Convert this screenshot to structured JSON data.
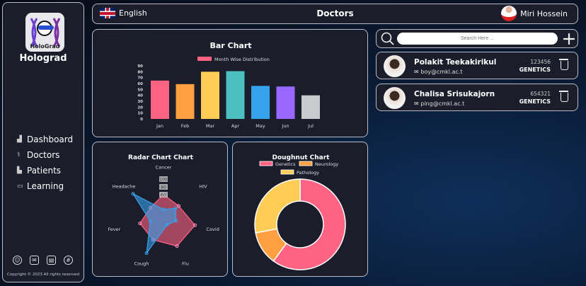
{
  "sidebar": {
    "brand": "Holograd",
    "logo_text": "HoloGrad",
    "items": [
      {
        "label": "Dashboard",
        "icon": "chart-icon"
      },
      {
        "label": "Doctors",
        "icon": "stethoscope-icon"
      },
      {
        "label": "Patients",
        "icon": "patients-icon"
      },
      {
        "label": "Learning",
        "icon": "book-icon"
      }
    ],
    "footer_icons": [
      "support-icon",
      "mail-icon",
      "document-icon",
      "globe-icon"
    ],
    "copyright": "Copyright © 2023 All rights reserved"
  },
  "header": {
    "language": "English",
    "title": "Doctors",
    "user": "Miri Hossein"
  },
  "search": {
    "placeholder": "Search Here ..."
  },
  "doctors": [
    {
      "name": "Polakit Teekakirikul",
      "email": "boy@cmkl.ac.t",
      "id": "123456",
      "department": "GENETICS"
    },
    {
      "name": "Chalisa Srisukajorn",
      "email": "ping@cmkl.ac.t",
      "id": "654321",
      "department": "GENETICS"
    }
  ],
  "chart_data": [
    {
      "type": "bar",
      "title": "Bar Chart",
      "legend": "Month Wise Distribution",
      "categories": [
        "Jan",
        "Feb",
        "Mar",
        "Apr",
        "May",
        "Jun",
        "Jul"
      ],
      "values": [
        65,
        59,
        80,
        81,
        56,
        55,
        40
      ],
      "ylim": [
        0,
        90
      ],
      "yticks": [
        0,
        10,
        20,
        30,
        40,
        50,
        60,
        70,
        80,
        90
      ],
      "colors": [
        "#ff6384",
        "#ff9f40",
        "#ffcd56",
        "#4bc0c0",
        "#36a2eb",
        "#9966ff",
        "#c9cbcf"
      ]
    },
    {
      "type": "radar",
      "title": "Radar Chart Chart",
      "labels": [
        "Cancer",
        "HIV",
        "Covid",
        "Flu",
        "Cough",
        "Fever",
        "Headache"
      ],
      "rticks": [
        60,
        80,
        100
      ],
      "rmax": 100,
      "series": [
        {
          "values": [
            60,
            50,
            83,
            80,
            62,
            62,
            43
          ],
          "color": "#ff6384"
        },
        {
          "values": [
            22,
            40,
            33,
            20,
            100,
            35,
            100
          ],
          "color": "#36a2eb"
        }
      ]
    },
    {
      "type": "doughnut",
      "title": "Doughnut Chart",
      "labels": [
        "Genetics",
        "Neurology",
        "Pathology"
      ],
      "values": [
        60,
        12,
        28
      ],
      "colors": [
        "#ff6384",
        "#ff9f40",
        "#ffcd56"
      ]
    }
  ]
}
